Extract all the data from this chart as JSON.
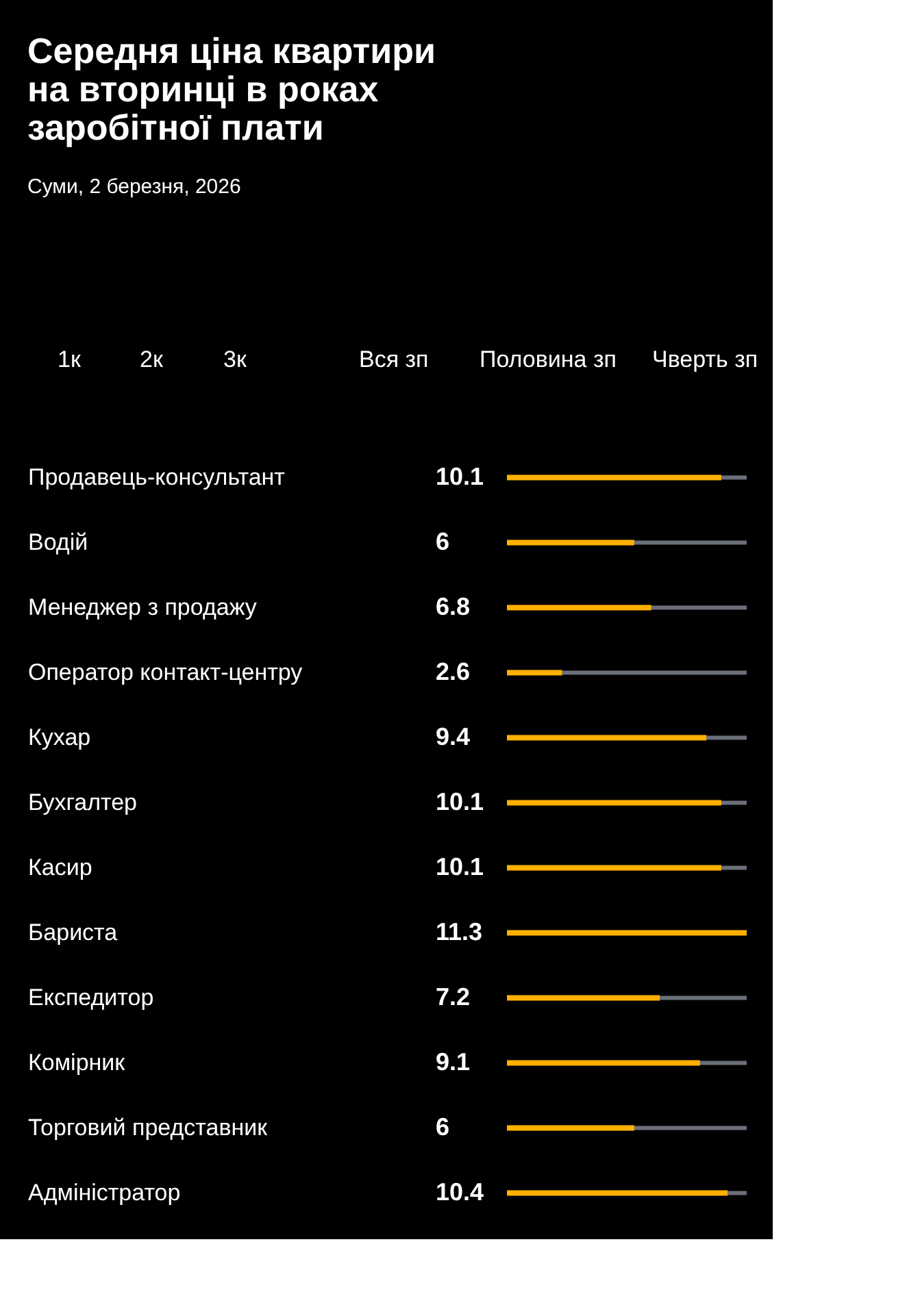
{
  "chart_data": {
    "type": "bar",
    "orientation": "horizontal",
    "title": "Середня ціна квартири на вторинці в роках заробітної плати",
    "subtitle": "Суми, 2 березня, 2026",
    "annotations": [
      "1к",
      "2к",
      "3к",
      "Вся зп",
      "Половина зп",
      "Чверть зп"
    ],
    "categories": [
      "Продавець-консультант",
      "Водій",
      "Менеджер з продажу",
      "Оператор контакт-центру",
      "Кухар",
      "Бухгалтер",
      "Касир",
      "Бариста",
      "Експедитор",
      "Комірник",
      "Торговий представник",
      "Адміністратор"
    ],
    "values": [
      10.1,
      6,
      6.8,
      2.6,
      9.4,
      10.1,
      10.1,
      11.3,
      7.2,
      9.1,
      6,
      10.4
    ],
    "color": "#ffb000",
    "xlim": [
      0,
      11.3
    ],
    "tick_labels": false,
    "data_labels": true,
    "grid": false,
    "legend": false
  }
}
